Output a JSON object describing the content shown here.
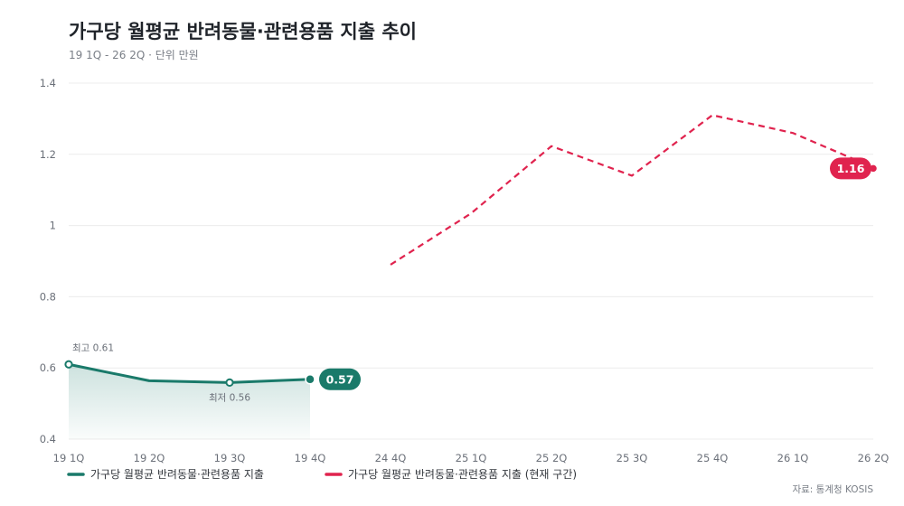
{
  "title": "가구당 월평균 반려동물·관련용품 지출 추이",
  "subtitle": "19 1Q - 26 2Q · 단위 만원",
  "source": "자료: 통계청 KOSIS",
  "colors": {
    "series1": "#1a7a6a",
    "series2": "#e0234e",
    "area": "#1a7a6a"
  },
  "chart_data": {
    "type": "line",
    "categories": [
      "19 1Q",
      "19 2Q",
      "19 3Q",
      "19 4Q",
      "24 4Q",
      "25 1Q",
      "25 2Q",
      "25 3Q",
      "25 4Q",
      "26 1Q",
      "26 2Q"
    ],
    "ylim": [
      0.4,
      1.4
    ],
    "yticks": [
      "0.4",
      "0.6",
      "0.8",
      "1",
      "1.2",
      "1.4"
    ],
    "grid": true,
    "legend_position": "bottom-left",
    "series": [
      {
        "name": "가구당 월평균 반려동물·관련용품 지출",
        "style": "solid-area",
        "values": [
          0.61,
          0.564,
          0.559,
          0.568,
          null,
          null,
          null,
          null,
          null,
          null,
          null
        ],
        "end_label": "0.57"
      },
      {
        "name": "가구당 월평균 반려동물·관련용품 지출 (현재 구간)",
        "style": "dashed",
        "values": [
          null,
          null,
          null,
          null,
          0.89,
          1.034,
          1.223,
          1.14,
          1.31,
          1.26,
          1.163
        ],
        "end_label": "1.16"
      }
    ],
    "annotations": [
      {
        "text": "최고 0.61",
        "series": 0,
        "index": 0,
        "position": "above"
      },
      {
        "text": "최저 0.56",
        "series": 0,
        "index": 2,
        "position": "below"
      }
    ]
  }
}
